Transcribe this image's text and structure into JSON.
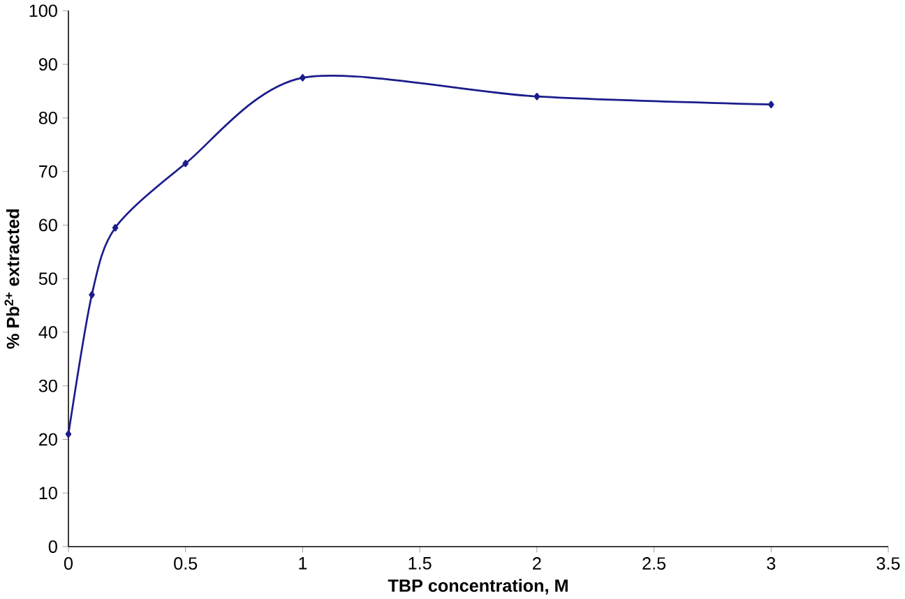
{
  "chart_data": {
    "type": "line",
    "xlabel": "TBP concentration, M",
    "ylabel": "% Pb$^{2+}$ extracted",
    "x": [
      0,
      0.1,
      0.2,
      0.5,
      1,
      2,
      3
    ],
    "values": [
      21,
      47,
      59.5,
      71.5,
      87.5,
      84,
      82.5
    ],
    "color": "#1c1c8c",
    "marker": "diamond",
    "line_style": "solid",
    "grid": false,
    "xlim": [
      0,
      3.5
    ],
    "xticks": [
      0,
      0.5,
      1,
      1.5,
      2,
      2.5,
      3,
      3.5
    ],
    "ylim": [
      0,
      100
    ],
    "yticks": [
      0,
      10,
      20,
      30,
      40,
      50,
      60,
      70,
      80,
      90,
      100
    ]
  }
}
